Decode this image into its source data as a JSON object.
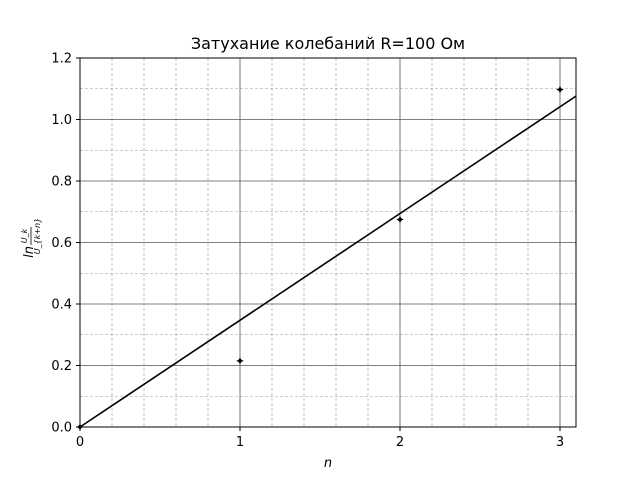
{
  "chart_data": {
    "type": "scatter",
    "title": "Затухание колебаний R=100 Ом",
    "xlabel": "n",
    "ylabel": {
      "prefix": "ln",
      "numerator": "U_k",
      "denominator": "U_{k+n}"
    },
    "xlim": [
      0,
      3.1
    ],
    "ylim": [
      0,
      1.2
    ],
    "x_ticks": [
      0,
      1,
      2,
      3
    ],
    "y_ticks": [
      0.0,
      0.2,
      0.4,
      0.6,
      0.8,
      1.0,
      1.2
    ],
    "x_tick_labels": [
      "0",
      "1",
      "2",
      "3"
    ],
    "y_tick_labels": [
      "0.0",
      "0.2",
      "0.4",
      "0.6",
      "0.8",
      "1.0",
      "1.2"
    ],
    "grid": true,
    "points": {
      "x": [
        0,
        1,
        2,
        3
      ],
      "y": [
        0.0,
        0.215,
        0.675,
        1.097
      ]
    },
    "fit_line": {
      "x": [
        0,
        3.1
      ],
      "y": [
        0.0,
        1.076
      ]
    }
  }
}
